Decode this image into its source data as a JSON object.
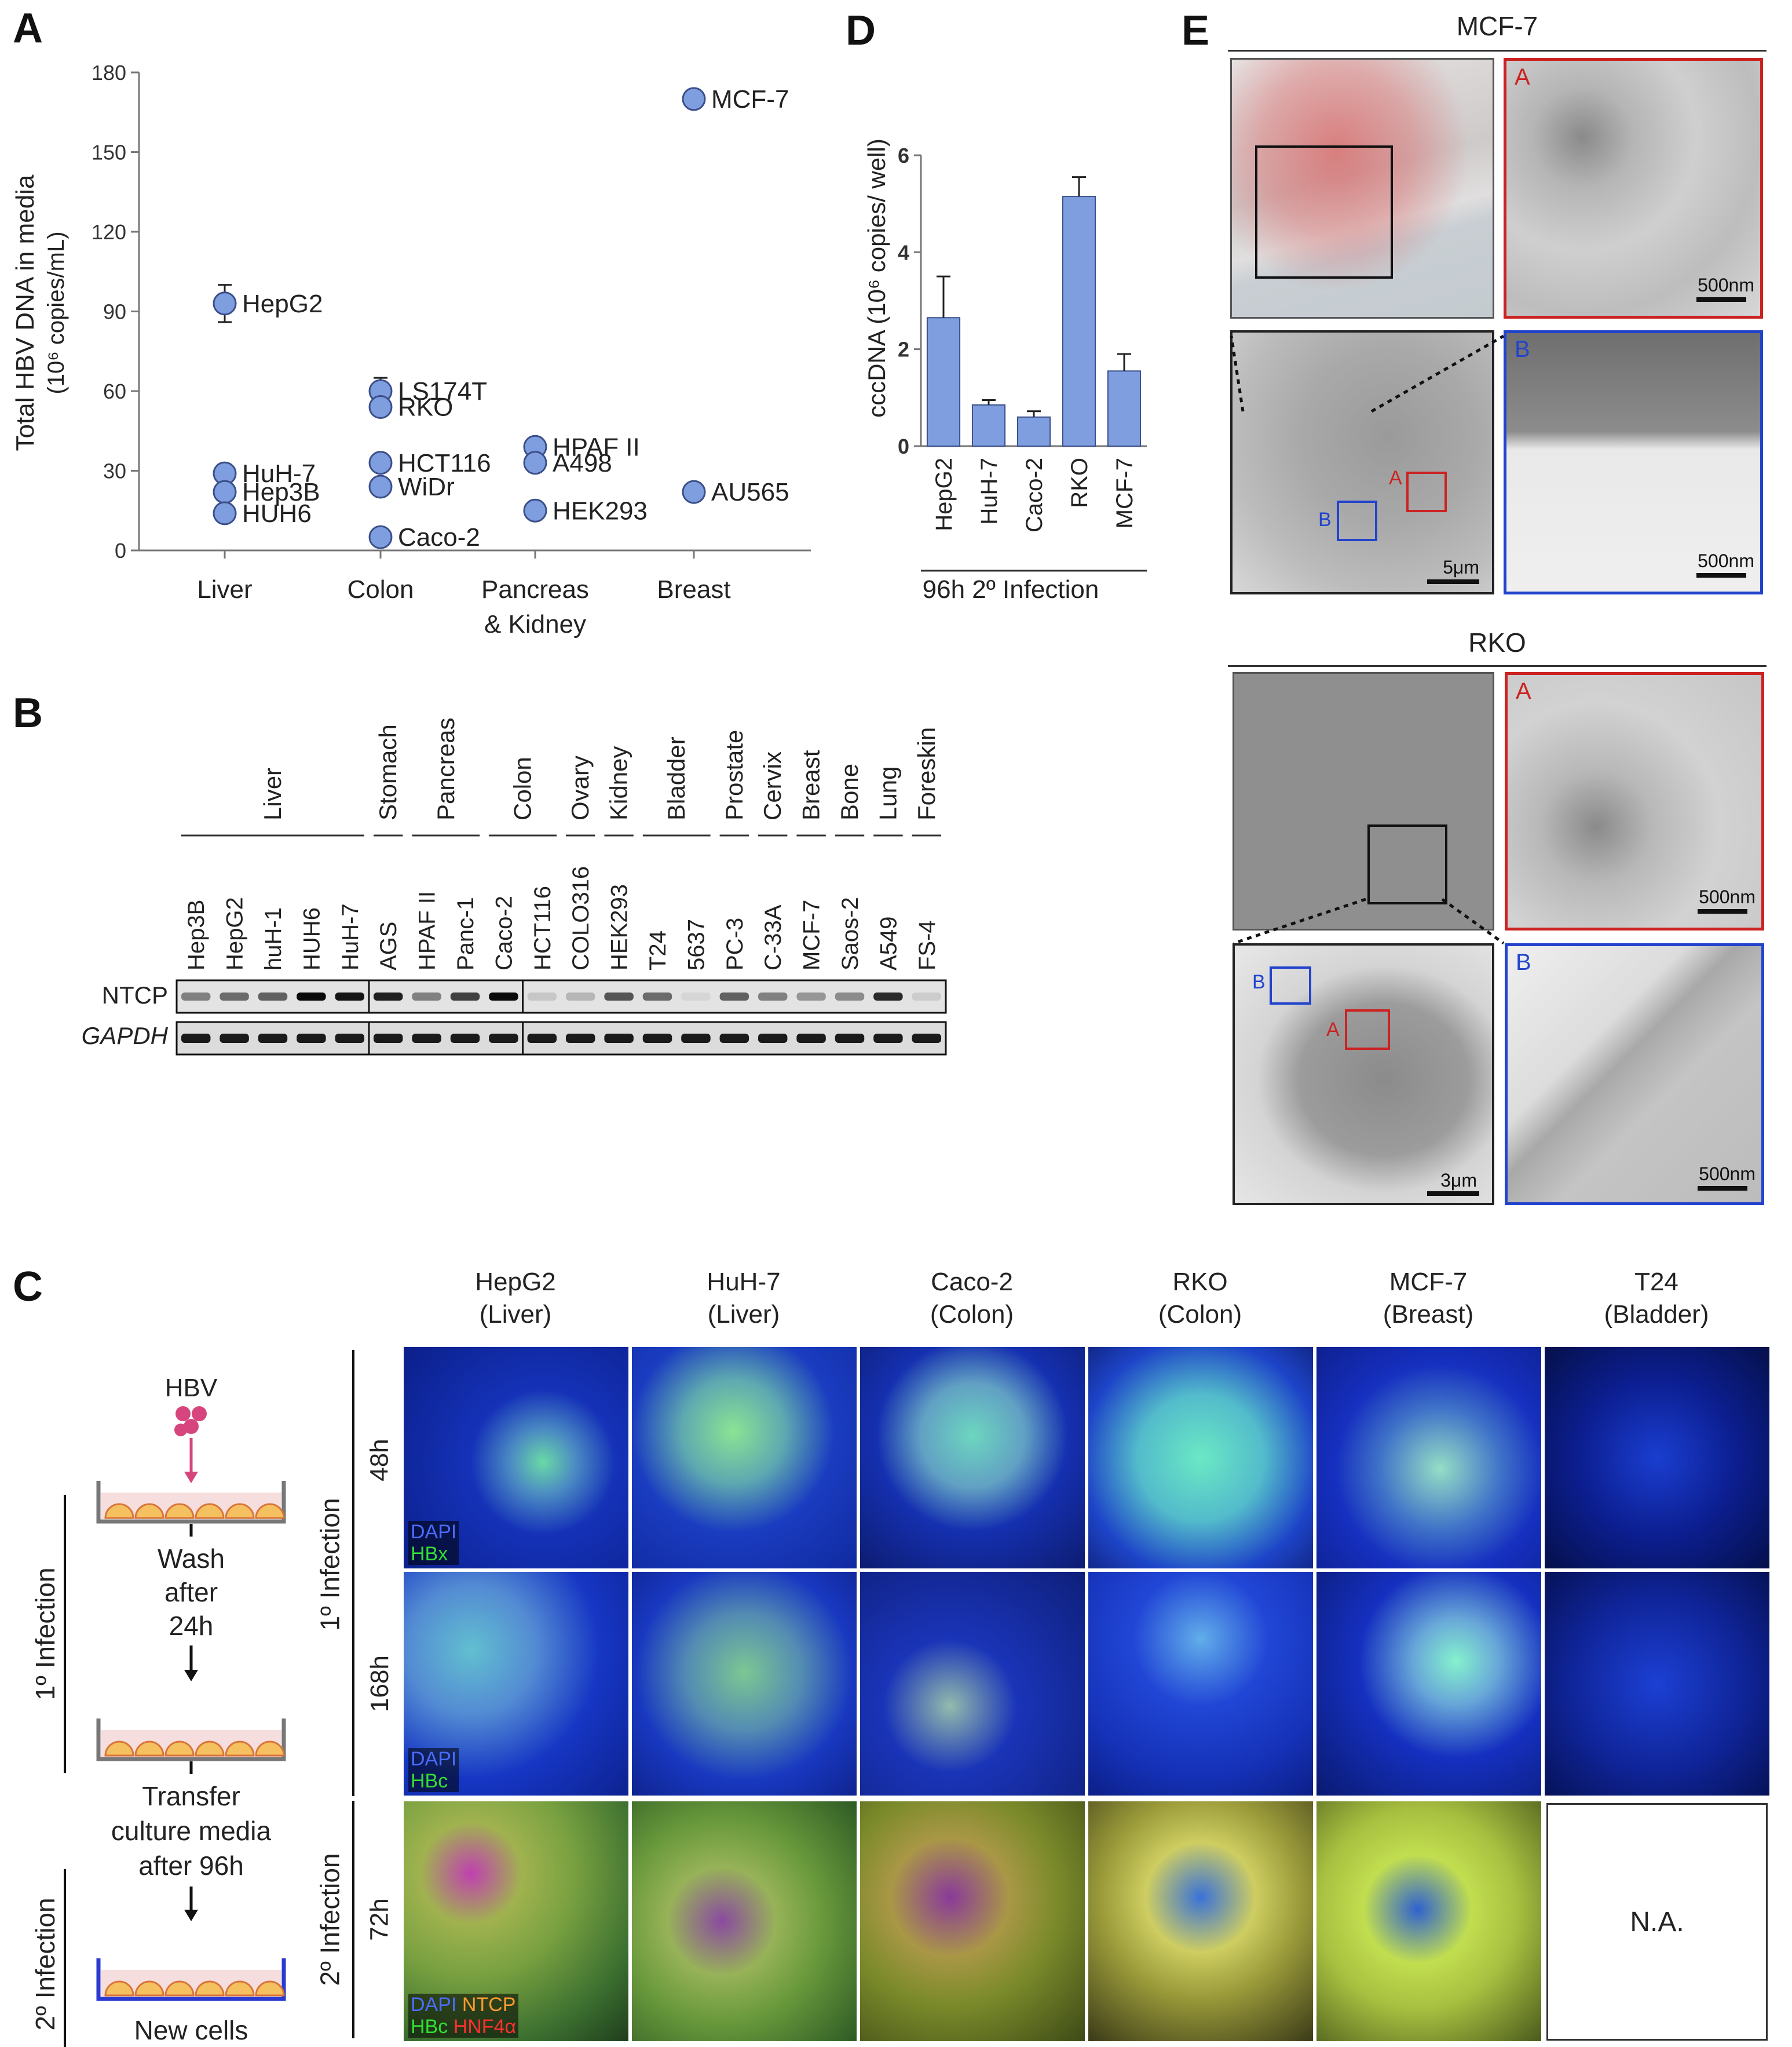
{
  "panel_letters": {
    "a": "A",
    "b": "B",
    "c": "C",
    "d": "D",
    "e": "E"
  },
  "chart_data": [
    {
      "type": "scatter",
      "panel": "A",
      "ylabel_line1": "Total HBV DNA in media",
      "ylabel_line2": "(10⁶ copies/mL)",
      "ylim": [
        0,
        180
      ],
      "yticks": [
        "0",
        "30",
        "60",
        "90",
        "120",
        "150",
        "180"
      ],
      "categories": [
        "Liver",
        "Colon",
        "Pancreas",
        "Breast"
      ],
      "category_sub": "& Kidney",
      "points": [
        {
          "label": "HepG2",
          "category": "Liver",
          "value": 93,
          "err": 7
        },
        {
          "label": "HuH-7",
          "category": "Liver",
          "value": 29,
          "err": 0
        },
        {
          "label": "Hep3B",
          "category": "Liver",
          "value": 22,
          "err": 0
        },
        {
          "label": "HUH6",
          "category": "Liver",
          "value": 14,
          "err": 0
        },
        {
          "label": "LS174T",
          "category": "Colon",
          "value": 60,
          "err": 5
        },
        {
          "label": "RKO",
          "category": "Colon",
          "value": 54,
          "err": 0
        },
        {
          "label": "HCT116",
          "category": "Colon",
          "value": 33,
          "err": 3
        },
        {
          "label": "WiDr",
          "category": "Colon",
          "value": 24,
          "err": 0
        },
        {
          "label": "Caco-2",
          "category": "Colon",
          "value": 5,
          "err": 0
        },
        {
          "label": "HPAF II",
          "category": "Pancreas",
          "value": 39,
          "err": 0
        },
        {
          "label": "A498",
          "category": "Pancreas",
          "value": 33,
          "err": 0
        },
        {
          "label": "HEK293",
          "category": "Pancreas",
          "value": 15,
          "err": 0
        },
        {
          "label": "MCF-7",
          "category": "Breast",
          "value": 170,
          "err": 3
        },
        {
          "label": "AU565",
          "category": "Breast",
          "value": 22,
          "err": 0
        }
      ]
    },
    {
      "type": "bar",
      "panel": "D",
      "ylabel": "cccDNA (10⁶ copies/ well)",
      "ylim": [
        0,
        6
      ],
      "yticks": [
        "0",
        "2",
        "4",
        "6"
      ],
      "categories": [
        "HepG2",
        "HuH-7",
        "Caco-2",
        "RKO",
        "MCF-7"
      ],
      "values": [
        2.65,
        0.85,
        0.6,
        5.15,
        1.55
      ],
      "errors": [
        0.85,
        0.1,
        0.12,
        0.4,
        0.35
      ],
      "xlabel": "96h 2º Infection",
      "bar_color": "#7f9ee0"
    }
  ],
  "blot": {
    "tissues": [
      "Liver",
      "Stomach",
      "Pancreas",
      "Colon",
      "Ovary",
      "Kidney",
      "Bladder",
      "Prostate",
      "Cervix",
      "Breast",
      "Bone",
      "Lung",
      "Foreskin"
    ],
    "cells": [
      "Hep3B",
      "HepG2",
      "huH-1",
      "HUH6",
      "HuH-7",
      "AGS",
      "HPAF II",
      "Panc-1",
      "Caco-2",
      "HCT116",
      "COLO316",
      "HEK293",
      "T24",
      "5637",
      "PC-3",
      "C-33A",
      "MCF-7",
      "Saos-2",
      "A549",
      "FS-4"
    ],
    "ntcp_intensity": [
      0.45,
      0.55,
      0.6,
      1.0,
      0.95,
      0.9,
      0.45,
      0.75,
      1.0,
      0.12,
      0.2,
      0.65,
      0.55,
      0.05,
      0.6,
      0.45,
      0.35,
      0.4,
      0.85,
      0.1
    ],
    "row_ntcp": "NTCP",
    "row_gapdh": "GAPDH"
  },
  "panel_c": {
    "schematic": {
      "hbv": "HBV",
      "wash1": "Wash",
      "wash2": "after",
      "wash3": "24h",
      "transfer1": "Transfer",
      "transfer2": "culture media",
      "transfer3": "after 96h",
      "new_cells": "New cells",
      "first_inf": "1º Infection",
      "second_inf": "2º Infection"
    },
    "row_group_1": "1º Infection",
    "row_group_2": "2º Infection",
    "row_times": [
      "48h",
      "168h",
      "72h"
    ],
    "columns": [
      {
        "cell": "HepG2",
        "tissue": "(Liver)"
      },
      {
        "cell": "HuH-7",
        "tissue": "(Liver)"
      },
      {
        "cell": "Caco-2",
        "tissue": "(Colon)"
      },
      {
        "cell": "RKO",
        "tissue": "(Colon)"
      },
      {
        "cell": "MCF-7",
        "tissue": "(Breast)"
      },
      {
        "cell": "T24",
        "tissue": "(Bladder)"
      }
    ],
    "legend_row1": {
      "a": "DAPI",
      "b": "HBx"
    },
    "legend_row2": {
      "a": "DAPI",
      "b": "HBc"
    },
    "legend_row3": {
      "a": "DAPI",
      "b": "NTCP",
      "c": "HBc",
      "d": "HNF4α"
    },
    "na": "N.A."
  },
  "panel_e": {
    "mcf7_title": "MCF-7",
    "rko_title": "RKO",
    "inset_a": "A",
    "inset_b": "B",
    "scale_500": "500nm",
    "scale_5um": "5μm",
    "scale_3um": "3μm"
  },
  "colors": {
    "marker": "#7f9ee0",
    "red_box": "#cc2222",
    "blue_box": "#2244cc"
  }
}
